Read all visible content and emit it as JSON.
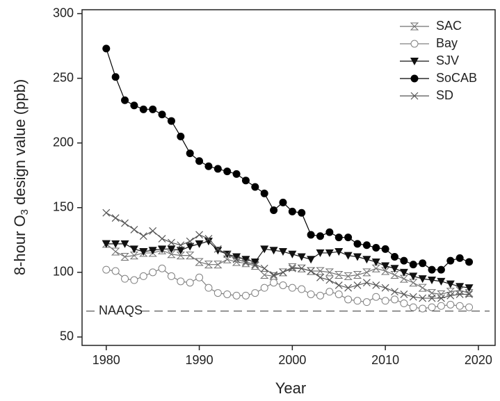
{
  "chart_data": {
    "type": "line",
    "xlabel": "Year",
    "ylabel_parts": [
      "8-hour O",
      "3",
      " design value (ppb)"
    ],
    "x": [
      1980,
      1981,
      1982,
      1983,
      1984,
      1985,
      1986,
      1987,
      1988,
      1989,
      1990,
      1991,
      1992,
      1993,
      1994,
      1995,
      1996,
      1997,
      1998,
      1999,
      2000,
      2001,
      2002,
      2003,
      2004,
      2005,
      2006,
      2007,
      2008,
      2009,
      2010,
      2011,
      2012,
      2013,
      2014,
      2015,
      2016,
      2017,
      2018,
      2019
    ],
    "xlim": [
      1977.4,
      2021.8
    ],
    "xticks": [
      1980,
      1990,
      2000,
      2010,
      2020
    ],
    "ylim": [
      43.5,
      303
    ],
    "yticks": [
      50,
      100,
      150,
      200,
      250,
      300
    ],
    "legend": "upper right",
    "reference_line": {
      "value": 70,
      "label": "NAAQS"
    },
    "series": [
      {
        "name": "SAC",
        "color": "#707070",
        "marker": "hourglass",
        "values": [
          122,
          116,
          112,
          113,
          115,
          115,
          117,
          114,
          113,
          113,
          108,
          106,
          106,
          110,
          108,
          107,
          105,
          98,
          97,
          100,
          104,
          103,
          101,
          101,
          100,
          98,
          97,
          98,
          100,
          103,
          101,
          98,
          95,
          92,
          88,
          84,
          83,
          85,
          86,
          84
        ]
      },
      {
        "name": "Bay",
        "color": "#808080",
        "marker": "open-circle",
        "values": [
          102,
          101,
          95,
          94,
          97,
          100,
          103,
          97,
          93,
          92,
          96,
          88,
          84,
          83,
          82,
          82,
          84,
          88,
          92,
          90,
          88,
          87,
          83,
          82,
          85,
          83,
          79,
          78,
          77,
          81,
          78,
          79,
          76,
          73,
          72,
          73,
          74,
          75,
          74,
          73
        ]
      },
      {
        "name": "SJV",
        "color": "#111111",
        "marker": "down-triangle",
        "values": [
          122,
          122,
          122,
          118,
          116,
          117,
          118,
          118,
          117,
          120,
          122,
          124,
          117,
          114,
          112,
          110,
          108,
          118,
          117,
          116,
          114,
          112,
          110,
          115,
          115,
          116,
          113,
          112,
          110,
          108,
          105,
          103,
          100,
          97,
          95,
          94,
          93,
          91,
          89,
          88
        ]
      },
      {
        "name": "SoCAB",
        "color": "#000000",
        "marker": "filled-circle",
        "values": [
          273,
          251,
          233,
          229,
          226,
          226,
          222,
          217,
          205,
          192,
          186,
          182,
          180,
          178,
          176,
          171,
          166,
          161,
          148,
          154,
          147,
          146,
          129,
          128,
          131,
          127,
          127,
          122,
          121,
          119,
          118,
          112,
          109,
          106,
          107,
          102,
          102,
          109,
          111,
          108
        ]
      },
      {
        "name": "SD",
        "color": "#555555",
        "marker": "x",
        "values": [
          146,
          142,
          138,
          133,
          128,
          132,
          126,
          123,
          121,
          124,
          129,
          126,
          118,
          114,
          110,
          108,
          106,
          103,
          98,
          100,
          103,
          103,
          101,
          96,
          94,
          90,
          88,
          90,
          92,
          90,
          88,
          85,
          83,
          81,
          80,
          80,
          80,
          82,
          83,
          83
        ]
      }
    ]
  }
}
